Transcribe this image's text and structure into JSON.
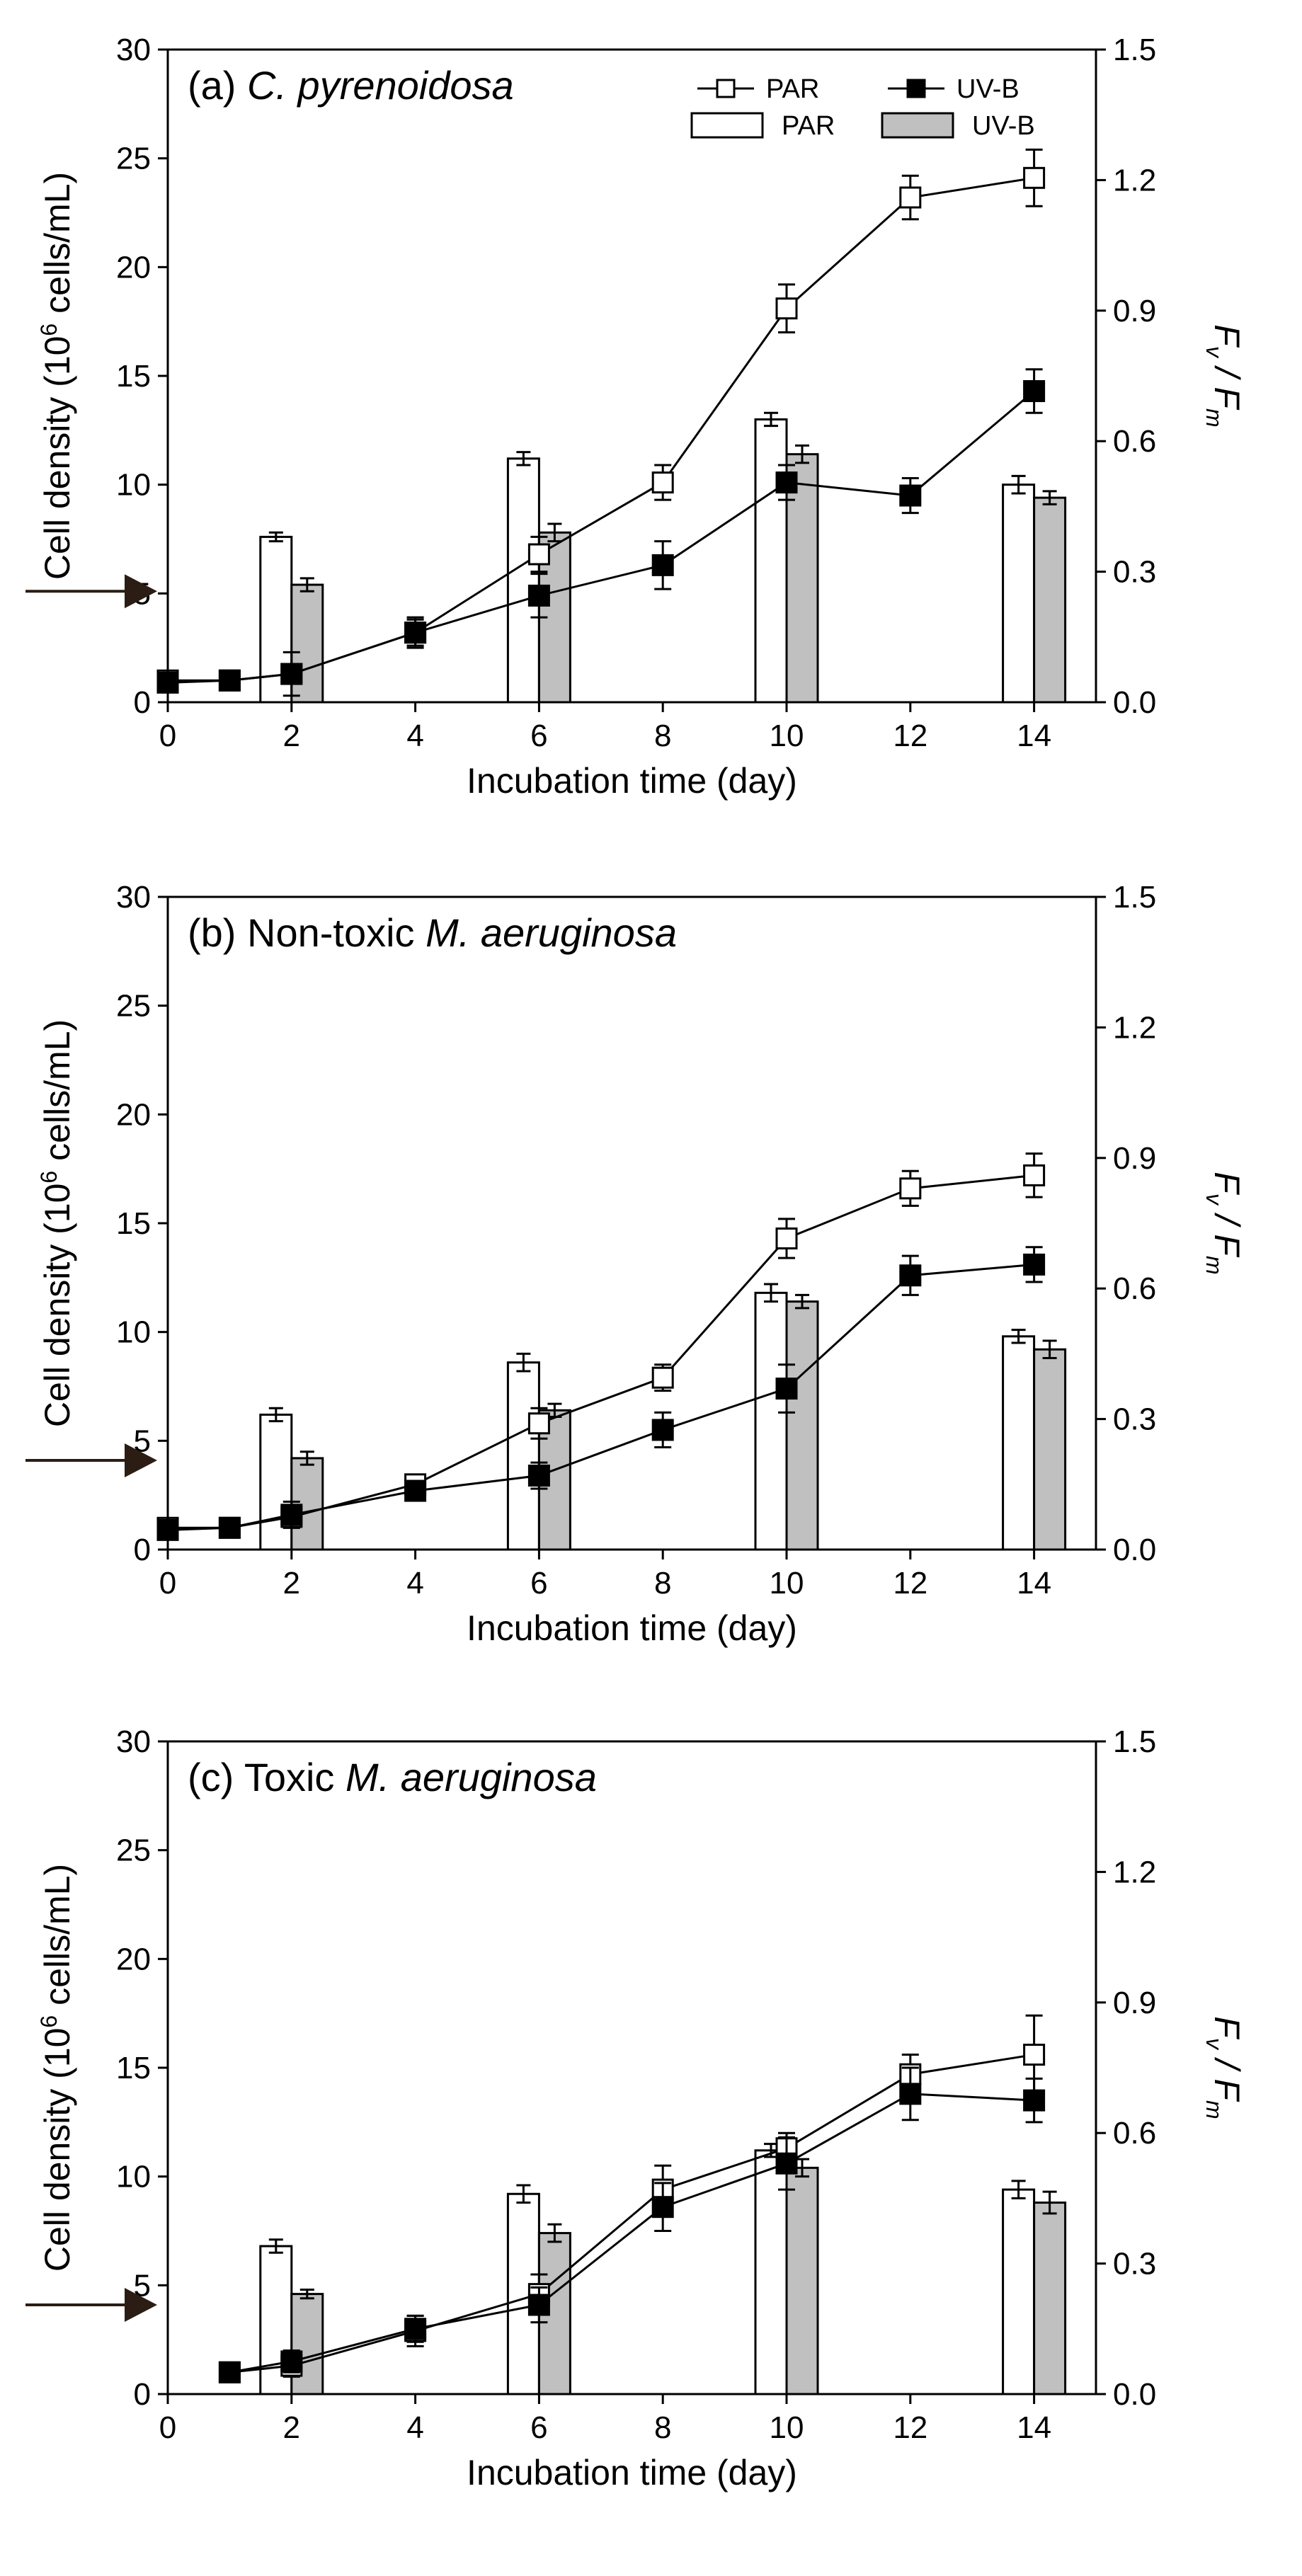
{
  "figure": {
    "legend": {
      "par_line": "PAR",
      "uvb_line": "UV-B",
      "par_bar": "PAR",
      "uvb_bar": "UV-B"
    },
    "colors": {
      "par_bar": "#ffffff",
      "uvb_bar": "#c0c0c0",
      "line": "#000000"
    }
  },
  "chart_data": [
    {
      "type": "bar+line",
      "title_prefix": "(a) ",
      "title_italic": "C. pyrenoidosa",
      "title_suffix": "",
      "xlabel": "Incubation time (day)",
      "ylabel_left": "Cell density (10⁶ cells/mL)",
      "ylabel_right": "Fv / Fm",
      "xlim": [
        0,
        15
      ],
      "ylim_left": [
        0,
        30
      ],
      "ylim_right": [
        0,
        1.5
      ],
      "x_ticks": [
        0,
        2,
        4,
        6,
        8,
        10,
        12,
        14
      ],
      "y_left_ticks": [
        0,
        5,
        10,
        15,
        20,
        25,
        30
      ],
      "y_right_ticks": [
        "0.0",
        "0.3",
        "0.6",
        "0.9",
        "1.2",
        "1.5"
      ],
      "inoculation_marker_y": 5.1,
      "lines": [
        {
          "name": "PAR",
          "x": [
            0,
            1,
            2,
            4,
            6,
            8,
            10,
            12,
            14
          ],
          "y": [
            1.0,
            1.0,
            1.3,
            3.2,
            6.8,
            10.1,
            18.1,
            23.2,
            24.1
          ],
          "err": [
            0.3,
            0.3,
            0.4,
            0.6,
            0.8,
            0.8,
            1.1,
            1.0,
            1.3
          ]
        },
        {
          "name": "UV-B",
          "x": [
            0,
            1,
            2,
            4,
            6,
            8,
            10,
            12,
            14
          ],
          "y": [
            0.9,
            1.0,
            1.3,
            3.2,
            4.9,
            6.3,
            10.1,
            9.5,
            14.3
          ],
          "err": [
            0.3,
            0.3,
            1.0,
            0.7,
            1.0,
            1.1,
            0.8,
            0.8,
            1.0
          ]
        }
      ],
      "bars": [
        {
          "name": "PAR",
          "x": [
            2,
            6,
            10,
            14
          ],
          "y": [
            0.38,
            0.56,
            0.65,
            0.5
          ],
          "err": [
            0.01,
            0.015,
            0.015,
            0.02
          ]
        },
        {
          "name": "UV-B",
          "x": [
            2,
            6,
            10,
            14
          ],
          "y": [
            0.27,
            0.39,
            0.57,
            0.47
          ],
          "err": [
            0.015,
            0.02,
            0.02,
            0.015
          ]
        }
      ]
    },
    {
      "type": "bar+line",
      "title_prefix": "(b) Non-toxic ",
      "title_italic": "M. aeruginosa",
      "title_suffix": "",
      "xlabel": "Incubation time (day)",
      "ylabel_left": "Cell density (10⁶ cells/mL)",
      "ylabel_right": "Fv / Fm",
      "xlim": [
        0,
        15
      ],
      "ylim_left": [
        0,
        30
      ],
      "ylim_right": [
        0,
        1.5
      ],
      "x_ticks": [
        0,
        2,
        4,
        6,
        8,
        10,
        12,
        14
      ],
      "y_left_ticks": [
        0,
        5,
        10,
        15,
        20,
        25,
        30
      ],
      "y_right_ticks": [
        "0.0",
        "0.3",
        "0.6",
        "0.9",
        "1.2",
        "1.5"
      ],
      "inoculation_marker_y": 4.1,
      "lines": [
        {
          "name": "PAR",
          "x": [
            0,
            1,
            2,
            4,
            6,
            8,
            10,
            12,
            14
          ],
          "y": [
            1.0,
            1.0,
            1.5,
            3.0,
            5.8,
            7.9,
            14.3,
            16.6,
            17.2
          ],
          "err": [
            0.2,
            0.2,
            0.5,
            0.4,
            0.7,
            0.6,
            0.9,
            0.8,
            1.0
          ]
        },
        {
          "name": "UV-B",
          "x": [
            0,
            1,
            2,
            4,
            6,
            8,
            10,
            12,
            14
          ],
          "y": [
            0.9,
            1.0,
            1.6,
            2.7,
            3.4,
            5.5,
            7.4,
            12.6,
            13.1
          ],
          "err": [
            0.2,
            0.2,
            0.6,
            0.4,
            0.6,
            0.8,
            1.1,
            0.9,
            0.8
          ]
        }
      ],
      "bars": [
        {
          "name": "PAR",
          "x": [
            2,
            6,
            10,
            14
          ],
          "y": [
            0.31,
            0.43,
            0.59,
            0.49
          ],
          "err": [
            0.015,
            0.02,
            0.02,
            0.015
          ]
        },
        {
          "name": "UV-B",
          "x": [
            2,
            6,
            10,
            14
          ],
          "y": [
            0.21,
            0.32,
            0.57,
            0.46
          ],
          "err": [
            0.015,
            0.015,
            0.015,
            0.02
          ]
        }
      ]
    },
    {
      "type": "bar+line",
      "title_prefix": "(c) Toxic ",
      "title_italic": "M. aeruginosa",
      "title_suffix": "",
      "xlabel": "Incubation time (day)",
      "ylabel_left": "Cell density (10⁶ cells/mL)",
      "ylabel_right": "Fv / Fm",
      "xlim": [
        0,
        15
      ],
      "ylim_left": [
        0,
        30
      ],
      "ylim_right": [
        0,
        1.5
      ],
      "x_ticks": [
        0,
        2,
        4,
        6,
        8,
        10,
        12,
        14
      ],
      "y_left_ticks": [
        0,
        5,
        10,
        15,
        20,
        25,
        30
      ],
      "y_right_ticks": [
        "0.0",
        "0.3",
        "0.6",
        "0.9",
        "1.2",
        "1.5"
      ],
      "inoculation_marker_y": 4.1,
      "lines": [
        {
          "name": "PAR",
          "x": [
            1,
            2,
            4,
            6,
            8,
            10,
            12,
            14
          ],
          "y": [
            1.0,
            1.3,
            2.9,
            4.6,
            9.4,
            11.3,
            14.7,
            15.6
          ],
          "err": [
            0.2,
            0.5,
            0.7,
            0.9,
            1.1,
            0.7,
            0.9,
            1.8
          ]
        },
        {
          "name": "UV-B",
          "x": [
            1,
            2,
            4,
            6,
            8,
            10,
            12,
            14
          ],
          "y": [
            1.0,
            1.5,
            3.0,
            4.1,
            8.6,
            10.6,
            13.8,
            13.5
          ],
          "err": [
            0.2,
            0.5,
            0.6,
            0.8,
            1.1,
            1.2,
            1.2,
            1.0
          ]
        }
      ],
      "bars": [
        {
          "name": "PAR",
          "x": [
            2,
            6,
            10,
            14
          ],
          "y": [
            0.34,
            0.46,
            0.56,
            0.47
          ],
          "err": [
            0.015,
            0.02,
            0.015,
            0.02
          ]
        },
        {
          "name": "UV-B",
          "x": [
            2,
            6,
            10,
            14
          ],
          "y": [
            0.23,
            0.37,
            0.52,
            0.44
          ],
          "err": [
            0.01,
            0.02,
            0.02,
            0.025
          ]
        }
      ]
    }
  ]
}
